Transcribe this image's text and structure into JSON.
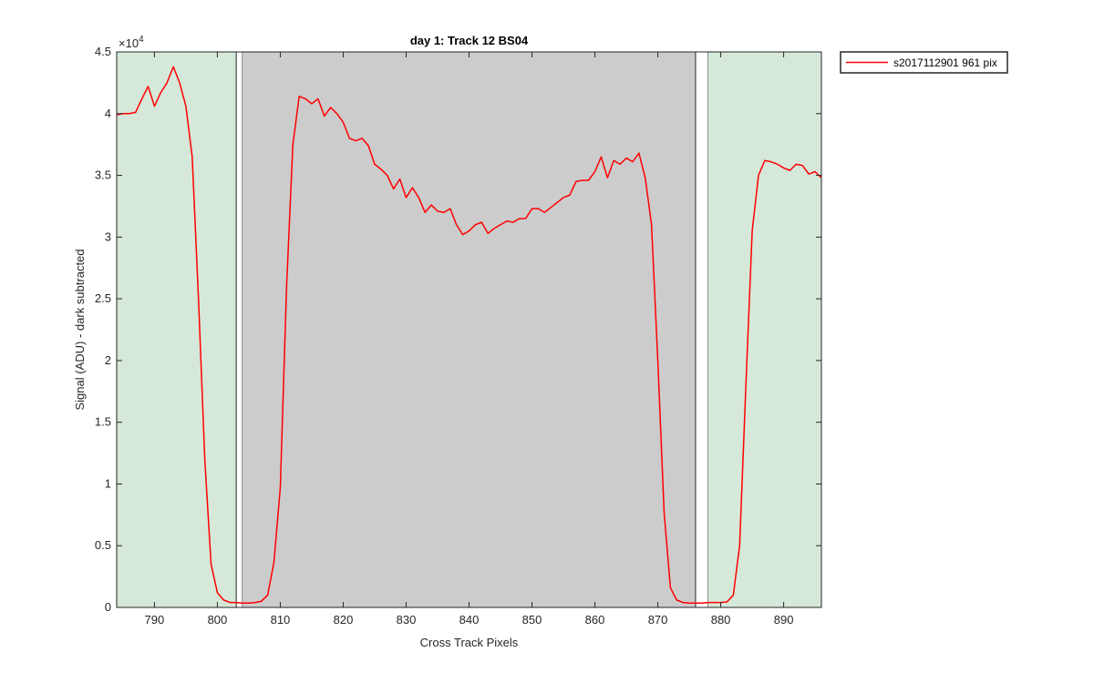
{
  "chart_data": {
    "type": "line",
    "title": "day 1: Track 12  BS04",
    "xlabel": "Cross Track Pixels",
    "ylabel": "Signal (ADU) - dark subtracted",
    "xlim": [
      784,
      896
    ],
    "ylim": [
      0,
      45000
    ],
    "x_ticks": [
      790,
      800,
      810,
      820,
      830,
      840,
      850,
      860,
      870,
      880,
      890
    ],
    "y_ticks": [
      0,
      5000,
      10000,
      15000,
      20000,
      25000,
      30000,
      35000,
      40000,
      45000
    ],
    "y_tick_labels": [
      "0",
      "0.5",
      "1",
      "1.5",
      "2",
      "2.5",
      "3",
      "3.5",
      "4",
      "4.5"
    ],
    "y_exponent_label": "×10",
    "y_exponent_power": "4",
    "grid": false,
    "legend_position": "outside-top-right",
    "regions": [
      {
        "kind": "edge",
        "x0": 784,
        "x1": 803,
        "color": "#d5e8d9"
      },
      {
        "kind": "gap",
        "x0": 803,
        "x1": 804,
        "color": "#ffffff"
      },
      {
        "kind": "center",
        "x0": 804,
        "x1": 876,
        "color": "#cccccc"
      },
      {
        "kind": "gap",
        "x0": 876,
        "x1": 878,
        "color": "#ffffff"
      },
      {
        "kind": "edge",
        "x0": 878,
        "x1": 896,
        "color": "#d5e8d9"
      }
    ],
    "series": [
      {
        "name": "s2017112901 961 pix",
        "color": "#ff0000",
        "x": [
          784,
          785,
          786,
          787,
          788,
          789,
          790,
          791,
          792,
          793,
          794,
          795,
          796,
          797,
          798,
          799,
          800,
          801,
          802,
          803,
          804,
          805,
          806,
          807,
          808,
          809,
          810,
          811,
          812,
          813,
          814,
          815,
          816,
          817,
          818,
          819,
          820,
          821,
          822,
          823,
          824,
          825,
          826,
          827,
          828,
          829,
          830,
          831,
          832,
          833,
          834,
          835,
          836,
          837,
          838,
          839,
          840,
          841,
          842,
          843,
          844,
          845,
          846,
          847,
          848,
          849,
          850,
          851,
          852,
          853,
          854,
          855,
          856,
          857,
          858,
          859,
          860,
          861,
          862,
          863,
          864,
          865,
          866,
          867,
          868,
          869,
          870,
          871,
          872,
          873,
          874,
          875,
          876,
          877,
          878,
          879,
          880,
          881,
          882,
          883,
          884,
          885,
          886,
          887,
          888,
          889,
          890,
          891,
          892,
          893,
          894,
          895,
          896
        ],
        "y": [
          39900,
          40000,
          40000,
          40100,
          41200,
          42200,
          40600,
          41700,
          42500,
          43800,
          42500,
          40600,
          36500,
          25000,
          12000,
          3500,
          1200,
          600,
          400,
          400,
          350,
          350,
          400,
          500,
          1000,
          3700,
          9700,
          26000,
          37500,
          41400,
          41200,
          40800,
          41200,
          39800,
          40500,
          40000,
          39300,
          38000,
          37800,
          38000,
          37400,
          35900,
          35500,
          35000,
          33900,
          34700,
          33200,
          34000,
          33200,
          32000,
          32600,
          32100,
          32000,
          32300,
          31000,
          30200,
          30500,
          31000,
          31200,
          30300,
          30700,
          31000,
          31300,
          31200,
          31500,
          31500,
          32300,
          32300,
          32000,
          32400,
          32800,
          33200,
          33400,
          34500,
          34600,
          34600,
          35300,
          36500,
          34800,
          36200,
          35900,
          36400,
          36100,
          36800,
          34800,
          31000,
          20000,
          7700,
          1600,
          600,
          400,
          350,
          350,
          350,
          400,
          400,
          400,
          450,
          1000,
          5000,
          18000,
          30500,
          35000,
          36200,
          36100,
          35900,
          35600,
          35400,
          35900,
          35800,
          35100,
          35300,
          34800
        ]
      }
    ]
  }
}
